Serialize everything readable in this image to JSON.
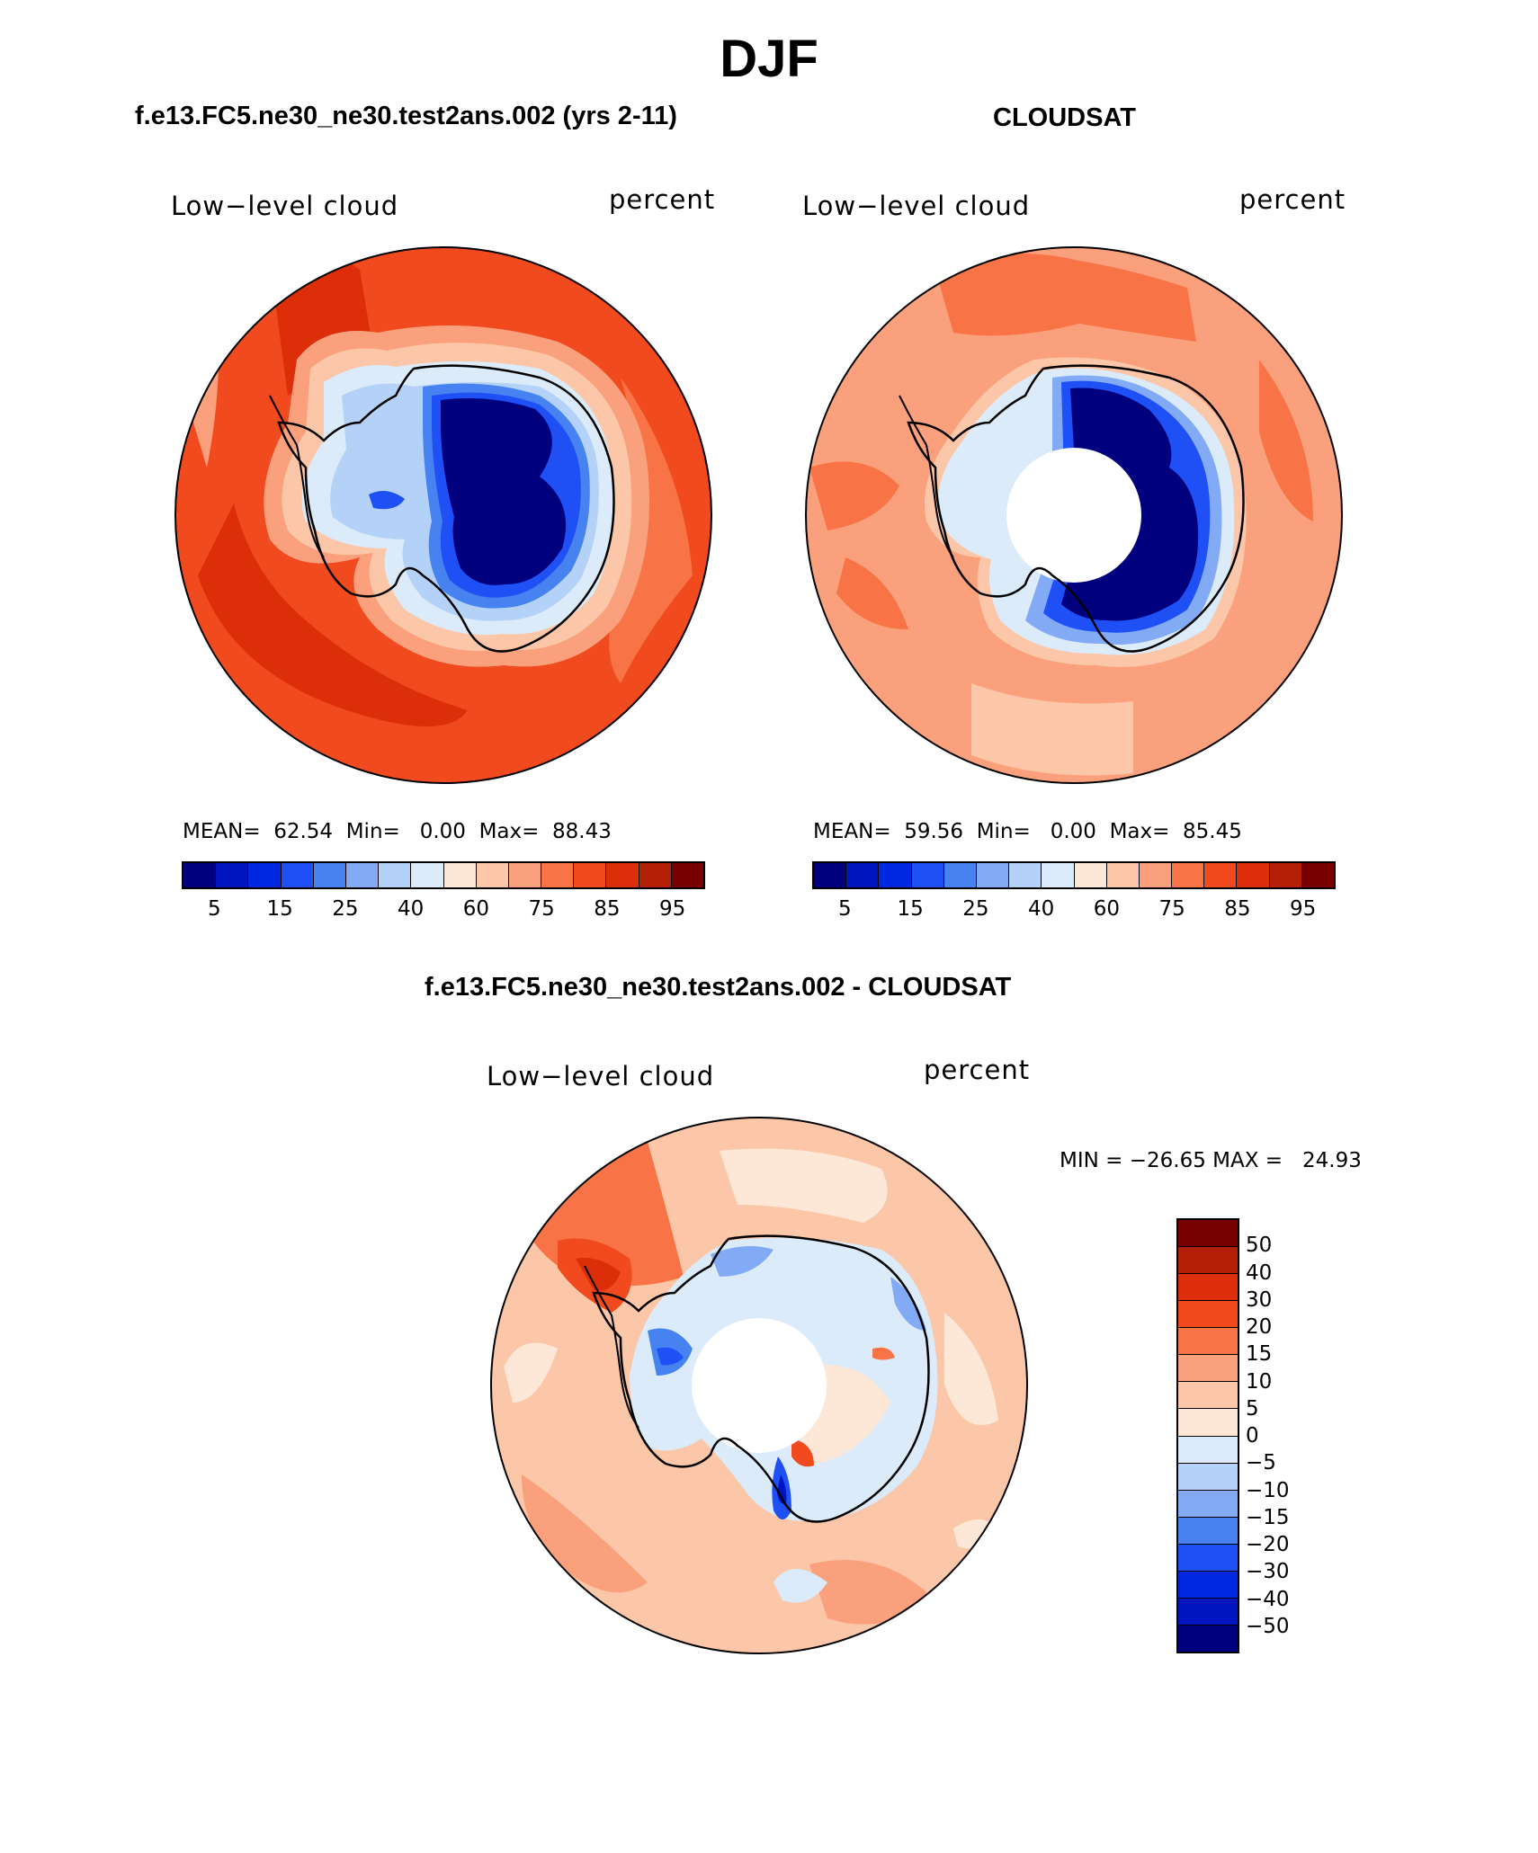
{
  "title": "DJF",
  "panels": [
    {
      "title": "f.e13.FC5.ne30_ne30.test2ans.002 (yrs 2-11)",
      "left_label": "Low−level cloud",
      "right_label": "percent",
      "mean_label": "MEAN=",
      "mean": "62.54",
      "min_label": "Min=",
      "min": "0.00",
      "max_label": "Max=",
      "max": "88.43"
    },
    {
      "title": "CLOUDSAT",
      "left_label": "Low−level cloud",
      "right_label": "percent",
      "mean_label": "MEAN=",
      "mean": "59.56",
      "min_label": "Min=",
      "min": "0.00",
      "max_label": "Max=",
      "max": "85.45"
    }
  ],
  "diff": {
    "title": "f.e13.FC5.ne30_ne30.test2ans.002 - CLOUDSAT",
    "left_label": "Low−level cloud",
    "right_label": "percent",
    "minmax_text": "MIN = −26.65 MAX =   24.93"
  },
  "colorbar_abs": {
    "labels": [
      "5",
      "15",
      "25",
      "40",
      "60",
      "75",
      "85",
      "95"
    ],
    "colors": [
      "#00007f",
      "#0014bf",
      "#0028e0",
      "#1e50f5",
      "#4682f0",
      "#82aaf5",
      "#b4d2f8",
      "#dcebfa",
      "#fde8d8",
      "#fcc6a8",
      "#fba07c",
      "#f87446",
      "#f04a1e",
      "#dc2e08",
      "#b41e04",
      "#780000"
    ]
  },
  "colorbar_diff": {
    "labels": [
      "50",
      "40",
      "30",
      "20",
      "15",
      "10",
      "5",
      "0",
      "−5",
      "−10",
      "−15",
      "−20",
      "−30",
      "−40",
      "−50"
    ],
    "colors": [
      "#780000",
      "#b41e04",
      "#dc2e08",
      "#f04a1e",
      "#f87446",
      "#fba07c",
      "#fcc6a8",
      "#fde8d8",
      "#dcebfa",
      "#b4d2f8",
      "#82aaf5",
      "#4682f0",
      "#1e50f5",
      "#0028e0",
      "#0014bf",
      "#00007f"
    ]
  }
}
